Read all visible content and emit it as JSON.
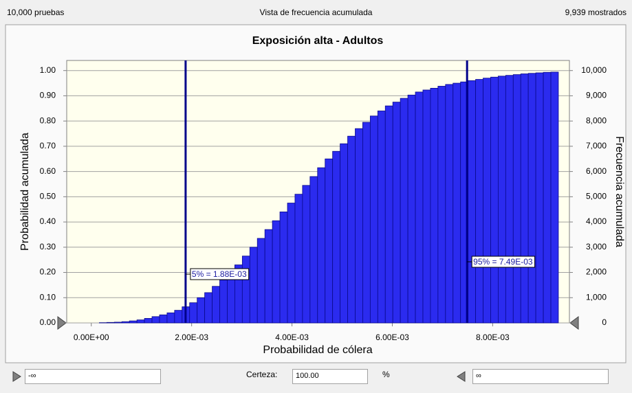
{
  "header": {
    "left": "10,000 pruebas",
    "center": "Vista de frecuencia acumulada",
    "right": "9,939 mostrados"
  },
  "chart_data": {
    "type": "histogram",
    "title": "Exposición alta - Adultos",
    "x_label": "Probabilidad de cólera",
    "y_label": "Probabilidad acumulada",
    "y2_label": "Frecuencia acumulada",
    "color": "#2b2bef",
    "edge_color": "#0a0a8c",
    "grid": true,
    "bins": [
      0.00016,
      0.00031,
      0.00046,
      0.00061,
      0.00076,
      0.00091,
      0.00106,
      0.00121,
      0.00136,
      0.00151,
      0.00166,
      0.00181,
      0.00196,
      0.00211,
      0.00226,
      0.00241,
      0.00256,
      0.00271,
      0.00286,
      0.00301,
      0.00316,
      0.00331,
      0.00346,
      0.00361,
      0.00376,
      0.00391,
      0.00406,
      0.00421,
      0.00436,
      0.00451,
      0.00466,
      0.00481,
      0.00496,
      0.00511,
      0.00526,
      0.00541,
      0.00556,
      0.00571,
      0.00586,
      0.00601,
      0.00616,
      0.00631,
      0.00646,
      0.00661,
      0.00676,
      0.00691,
      0.00706,
      0.00721,
      0.00736,
      0.00751,
      0.00766,
      0.00781,
      0.00796,
      0.00811,
      0.00826,
      0.00841,
      0.00856,
      0.00871,
      0.00886,
      0.00901,
      0.00916,
      0.00931
    ],
    "values": [
      0.001,
      0.002,
      0.003,
      0.005,
      0.008,
      0.012,
      0.018,
      0.025,
      0.032,
      0.04,
      0.05,
      0.064,
      0.08,
      0.1,
      0.12,
      0.145,
      0.17,
      0.2,
      0.23,
      0.265,
      0.3,
      0.335,
      0.37,
      0.405,
      0.44,
      0.475,
      0.51,
      0.545,
      0.58,
      0.615,
      0.65,
      0.68,
      0.71,
      0.74,
      0.77,
      0.795,
      0.82,
      0.84,
      0.86,
      0.875,
      0.89,
      0.903,
      0.915,
      0.923,
      0.93,
      0.938,
      0.945,
      0.95,
      0.955,
      0.96,
      0.965,
      0.97,
      0.974,
      0.978,
      0.981,
      0.984,
      0.987,
      0.989,
      0.991,
      0.993,
      0.994
    ],
    "xlim": [
      -0.00049,
      0.00953
    ],
    "xticks": [
      {
        "value": 0,
        "label": "0.00E+00"
      },
      {
        "value": 0.002,
        "label": "2.00E-03"
      },
      {
        "value": 0.004,
        "label": "4.00E-03"
      },
      {
        "value": 0.006,
        "label": "6.00E-03"
      },
      {
        "value": 0.008,
        "label": "8.00E-03"
      }
    ],
    "ylim": [
      0,
      1.04
    ],
    "yticks": [
      {
        "value": 0,
        "label": "0.00"
      },
      {
        "value": 0.1,
        "label": "0.10"
      },
      {
        "value": 0.2,
        "label": "0.20"
      },
      {
        "value": 0.3,
        "label": "0.30"
      },
      {
        "value": 0.4,
        "label": "0.40"
      },
      {
        "value": 0.5,
        "label": "0.50"
      },
      {
        "value": 0.6,
        "label": "0.60"
      },
      {
        "value": 0.7,
        "label": "0.70"
      },
      {
        "value": 0.8,
        "label": "0.80"
      },
      {
        "value": 0.9,
        "label": "0.90"
      },
      {
        "value": 1,
        "label": "1.00"
      }
    ],
    "y2lim": [
      0,
      10400
    ],
    "y2ticks": [
      0,
      {
        "value": 1000,
        "label": "1,000"
      },
      {
        "value": 2000,
        "label": "2,000"
      },
      {
        "value": 3000,
        "label": "3,000"
      },
      {
        "value": 4000,
        "label": "4,000"
      },
      {
        "value": 5000,
        "label": "5,000"
      },
      {
        "value": 6000,
        "label": "6,000"
      },
      {
        "value": 7000,
        "label": "7,000"
      },
      {
        "value": 8000,
        "label": "8,000"
      },
      {
        "value": 9000,
        "label": "9,000"
      },
      {
        "value": 10000,
        "label": "10,000"
      }
    ],
    "markers": [
      {
        "value": 0.00188,
        "label": "5% = 1.88E-03"
      },
      {
        "value": 0.00749,
        "label": "95% = 7.49E-03"
      }
    ]
  },
  "footer": {
    "left_value": "-∞",
    "certainty_label": "Certeza:",
    "certainty_value": "100.00",
    "unit": "%",
    "right_value": "∞"
  }
}
